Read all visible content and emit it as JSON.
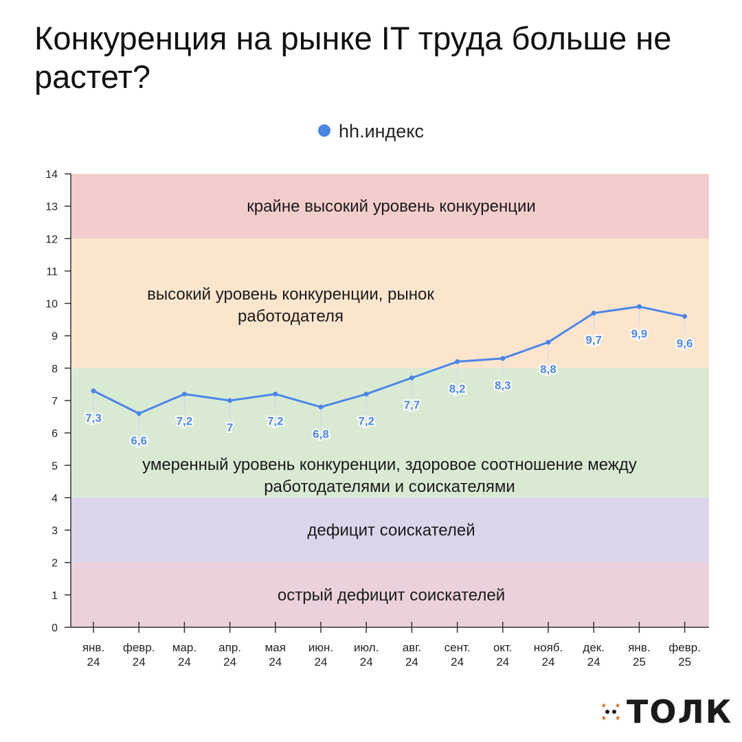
{
  "page": {
    "title": "Конкуренция на рынке IT труда больше не растет?",
    "logo_text": "ТОЛК"
  },
  "colors": {
    "line": "#4a86e8",
    "label": "#4a86e8",
    "band_extreme": "#f3cccc",
    "band_high": "#fce5cd",
    "band_moderate": "#d9ead3",
    "band_deficit": "#ddd5ea",
    "band_acute": "#ead1dc",
    "logo_accent": "#e8752a"
  },
  "chart_data": {
    "type": "line",
    "legend": {
      "position": "top-center"
    },
    "ylim": [
      0,
      14
    ],
    "yticks": [
      0,
      1,
      2,
      3,
      4,
      5,
      6,
      7,
      8,
      9,
      10,
      11,
      12,
      13,
      14
    ],
    "categories": [
      [
        "янв.",
        "24"
      ],
      [
        "февр.",
        "24"
      ],
      [
        "мар.",
        "24"
      ],
      [
        "апр.",
        "24"
      ],
      [
        "мая",
        "24"
      ],
      [
        "июн.",
        "24"
      ],
      [
        "июл.",
        "24"
      ],
      [
        "авг.",
        "24"
      ],
      [
        "сент.",
        "24"
      ],
      [
        "окт.",
        "24"
      ],
      [
        "нояб.",
        "24"
      ],
      [
        "дек.",
        "24"
      ],
      [
        "янв.",
        "25"
      ],
      [
        "февр.",
        "25"
      ]
    ],
    "series": [
      {
        "name": "hh.индекс",
        "values": [
          7.3,
          6.6,
          7.2,
          7.0,
          7.2,
          6.8,
          7.2,
          7.7,
          8.2,
          8.3,
          8.8,
          9.7,
          9.9,
          9.6
        ],
        "data_labels": [
          "7,3",
          "6,6",
          "7,2",
          "7",
          "7,2",
          "6,8",
          "7,2",
          "7,7",
          "8,2",
          "8,3",
          "8,8",
          "9,7",
          "9,9",
          "9,6"
        ]
      }
    ],
    "bands": [
      {
        "from": 12,
        "to": 14,
        "color_key": "band_extreme",
        "label": [
          "крайне высокий уровень конкуренции"
        ],
        "align": "center"
      },
      {
        "from": 8,
        "to": 12,
        "color_key": "band_high",
        "label": [
          "высокий уровень конкуренции, рынок",
          "работодателя"
        ],
        "align": "left"
      },
      {
        "from": 4,
        "to": 8,
        "color_key": "band_moderate",
        "label": [
          "умеренный уровень конкуренции, здоровое соотношение между",
          "работодателями и соискателями"
        ],
        "align": "center-low"
      },
      {
        "from": 2,
        "to": 4,
        "color_key": "band_deficit",
        "label": [
          "дефицит соискателей"
        ],
        "align": "center"
      },
      {
        "from": 0,
        "to": 2,
        "color_key": "band_acute",
        "label": [
          "острый дефицит соискателей"
        ],
        "align": "center"
      }
    ]
  }
}
